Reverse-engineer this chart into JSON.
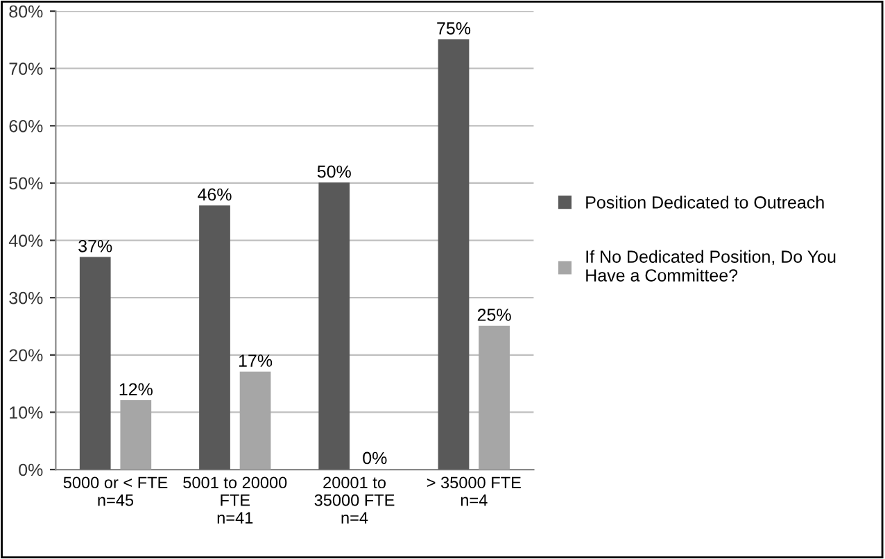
{
  "chart_data": {
    "type": "bar",
    "categories": [
      "5000 or < FTE\nn=45",
      "5001 to 20000\nFTE\nn=41",
      "20001 to\n35000 FTE\nn=4",
      "> 35000 FTE\nn=4"
    ],
    "series": [
      {
        "name": "Position Dedicated to Outreach",
        "color": "#595959",
        "values": [
          37,
          46,
          50,
          75
        ],
        "value_labels": [
          "37%",
          "46%",
          "50%",
          "75%"
        ]
      },
      {
        "name": "If No Dedicated Position, Do You\nHave a Committee?",
        "color": "#a6a6a6",
        "values": [
          12,
          17,
          0,
          25
        ],
        "value_labels": [
          "12%",
          "17%",
          "0%",
          "25%"
        ]
      }
    ],
    "ylim": [
      0,
      80
    ],
    "yticks": [
      {
        "value": 0,
        "label": "0%"
      },
      {
        "value": 10,
        "label": "10%"
      },
      {
        "value": 20,
        "label": "20%"
      },
      {
        "value": 30,
        "label": "30%"
      },
      {
        "value": 40,
        "label": "40%"
      },
      {
        "value": 50,
        "label": "50%"
      },
      {
        "value": 60,
        "label": "60%"
      },
      {
        "value": 70,
        "label": "70%"
      },
      {
        "value": 80,
        "label": "80%"
      }
    ],
    "grid": "y",
    "legend": "right"
  }
}
